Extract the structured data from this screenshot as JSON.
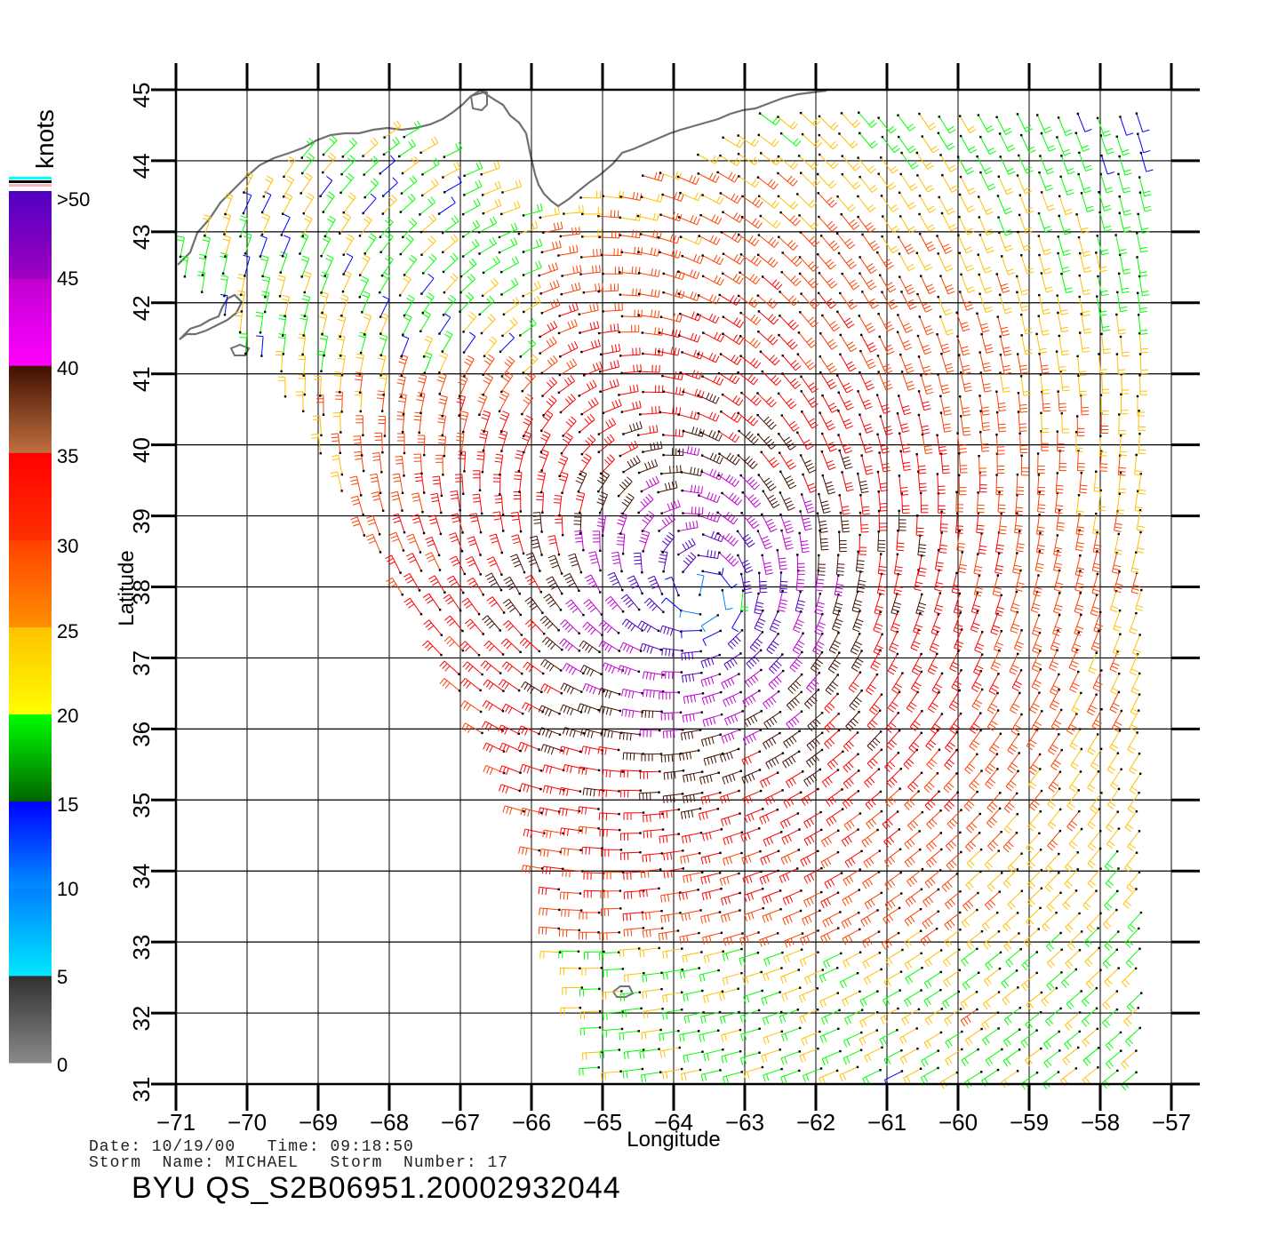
{
  "colorbar": {
    "title": "knots",
    "labels": [
      ">50",
      "45",
      "40",
      "35",
      "30",
      "25",
      "20",
      "15",
      "10",
      "5",
      "0"
    ],
    "bands": [
      {
        "from": 0,
        "to": 5,
        "colors": [
          "#8a8a8a",
          "#303030"
        ]
      },
      {
        "from": 5,
        "to": 10,
        "colors": [
          "#00e8ff",
          "#0080ff"
        ]
      },
      {
        "from": 10,
        "to": 15,
        "colors": [
          "#0090ff",
          "#0000ff"
        ]
      },
      {
        "from": 15,
        "to": 20,
        "colors": [
          "#006400",
          "#00ff00"
        ]
      },
      {
        "from": 20,
        "to": 25,
        "colors": [
          "#ffff00",
          "#ffc000"
        ]
      },
      {
        "from": 25,
        "to": 30,
        "colors": [
          "#ff9000",
          "#ff4000"
        ]
      },
      {
        "from": 30,
        "to": 35,
        "colors": [
          "#ff3000",
          "#ff0000"
        ]
      },
      {
        "from": 35,
        "to": 40,
        "colors": [
          "#c07040",
          "#401000"
        ]
      },
      {
        "from": 40,
        "to": 45,
        "colors": [
          "#ff00ff",
          "#c000d0"
        ]
      },
      {
        "from": 45,
        "to": 50,
        "colors": [
          "#a000c0",
          "#5000c0"
        ]
      }
    ],
    "top_stripe_colors": [
      "#00ffff",
      "#000000",
      "#ffb0c0"
    ]
  },
  "map": {
    "x_label": "Longitude",
    "y_label": "Latitude",
    "x_ticks": [
      -71,
      -70,
      -69,
      -68,
      -67,
      -66,
      -65,
      -64,
      -63,
      -62,
      -61,
      -60,
      -59,
      -58,
      -57
    ],
    "y_ticks": [
      31,
      32,
      33,
      34,
      35,
      36,
      37,
      38,
      39,
      40,
      41,
      42,
      43,
      44,
      45
    ],
    "x_range": [
      -71,
      -57
    ],
    "y_range": [
      31,
      45
    ],
    "grid": true,
    "coastline_color": "#707070",
    "storm_center": {
      "lon": -63.5,
      "lat": 37.8
    }
  },
  "meta": {
    "date_line": "Date: 10/19/00   Time: 09:18:50",
    "storm_line": "Storm  Name: MICHAEL   Storm  Number: 17",
    "product": "BYU  QS_S2B06951.20002932044"
  }
}
